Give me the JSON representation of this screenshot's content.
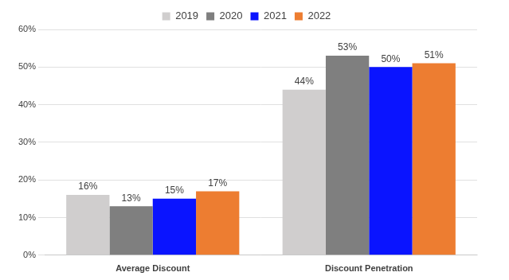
{
  "chart_data": {
    "type": "bar",
    "categories": [
      "Average Discount",
      "Discount Penetration"
    ],
    "series": [
      {
        "name": "2019",
        "color": "#d0cece",
        "values": [
          16,
          44
        ],
        "value_labels": [
          "16%",
          "44%"
        ]
      },
      {
        "name": "2020",
        "color": "#7f7f7f",
        "values": [
          13,
          53
        ],
        "value_labels": [
          "13%",
          "53%"
        ]
      },
      {
        "name": "2021",
        "color": "#0a14ff",
        "values": [
          15,
          50
        ],
        "value_labels": [
          "15%",
          "50%"
        ]
      },
      {
        "name": "2022",
        "color": "#ed7d31",
        "values": [
          17,
          51
        ],
        "value_labels": [
          "17%",
          "51%"
        ]
      }
    ],
    "ylim": [
      0,
      60
    ],
    "yticks": [
      {
        "value": 0,
        "label": "0%"
      },
      {
        "value": 10,
        "label": "10%"
      },
      {
        "value": 20,
        "label": "20%"
      },
      {
        "value": 30,
        "label": "30%"
      },
      {
        "value": 40,
        "label": "40%"
      },
      {
        "value": 50,
        "label": "50%"
      },
      {
        "value": 60,
        "label": "60%"
      }
    ],
    "grid": true,
    "legend": "top",
    "data_labels": true
  }
}
